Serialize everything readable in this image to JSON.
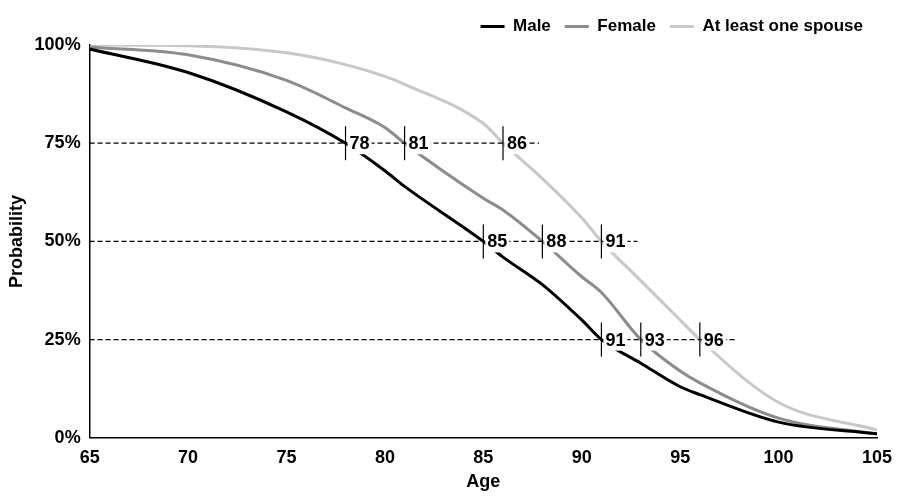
{
  "chart_data": {
    "type": "line",
    "x_label": "Age",
    "y_label": "Probability",
    "x": [
      65,
      70,
      75,
      78,
      80,
      81,
      85,
      86,
      88,
      90,
      91,
      93,
      95,
      96,
      100,
      105
    ],
    "series": [
      {
        "name": "Male",
        "color": "#000000",
        "values": [
          99,
          93,
          83,
          75,
          68,
          64,
          50,
          46,
          39,
          30,
          25,
          19,
          13,
          11,
          4,
          1
        ]
      },
      {
        "name": "Female",
        "color": "#8c8c8c",
        "values": [
          99.5,
          97.5,
          91,
          84,
          79,
          75,
          61,
          58,
          50,
          41,
          37,
          25,
          17,
          14,
          5,
          1
        ]
      },
      {
        "name": "At least one spouse",
        "color": "#c8c8c8",
        "values": [
          100,
          99.8,
          98,
          95,
          92,
          90,
          80,
          75,
          66,
          56,
          50,
          40,
          30,
          25,
          9,
          2
        ]
      }
    ],
    "xlim": [
      65,
      105
    ],
    "xticks": [
      65,
      70,
      75,
      80,
      85,
      90,
      95,
      100,
      105
    ],
    "ylim": [
      0,
      100
    ],
    "yticks": [
      {
        "value": 0,
        "label": "0%"
      },
      {
        "value": 25,
        "label": "25%"
      },
      {
        "value": 50,
        "label": "50%"
      },
      {
        "value": 75,
        "label": "75%"
      },
      {
        "value": 100,
        "label": "100%"
      }
    ],
    "grid": false,
    "legend": "upper right",
    "reference_lines": [
      75,
      50,
      25
    ],
    "annotations": [
      {
        "series": "Male",
        "x": 78,
        "y": 75,
        "label": "78"
      },
      {
        "series": "Female",
        "x": 81,
        "y": 75,
        "label": "81"
      },
      {
        "series": "At least one spouse",
        "x": 86,
        "y": 75,
        "label": "86"
      },
      {
        "series": "Male",
        "x": 85,
        "y": 50,
        "label": "85"
      },
      {
        "series": "Female",
        "x": 88,
        "y": 50,
        "label": "88"
      },
      {
        "series": "At least one spouse",
        "x": 91,
        "y": 50,
        "label": "91"
      },
      {
        "series": "Male",
        "x": 91,
        "y": 25,
        "label": "91"
      },
      {
        "series": "Female",
        "x": 93,
        "y": 25,
        "label": "93"
      },
      {
        "series": "At least one spouse",
        "x": 96,
        "y": 25,
        "label": "96"
      }
    ]
  }
}
